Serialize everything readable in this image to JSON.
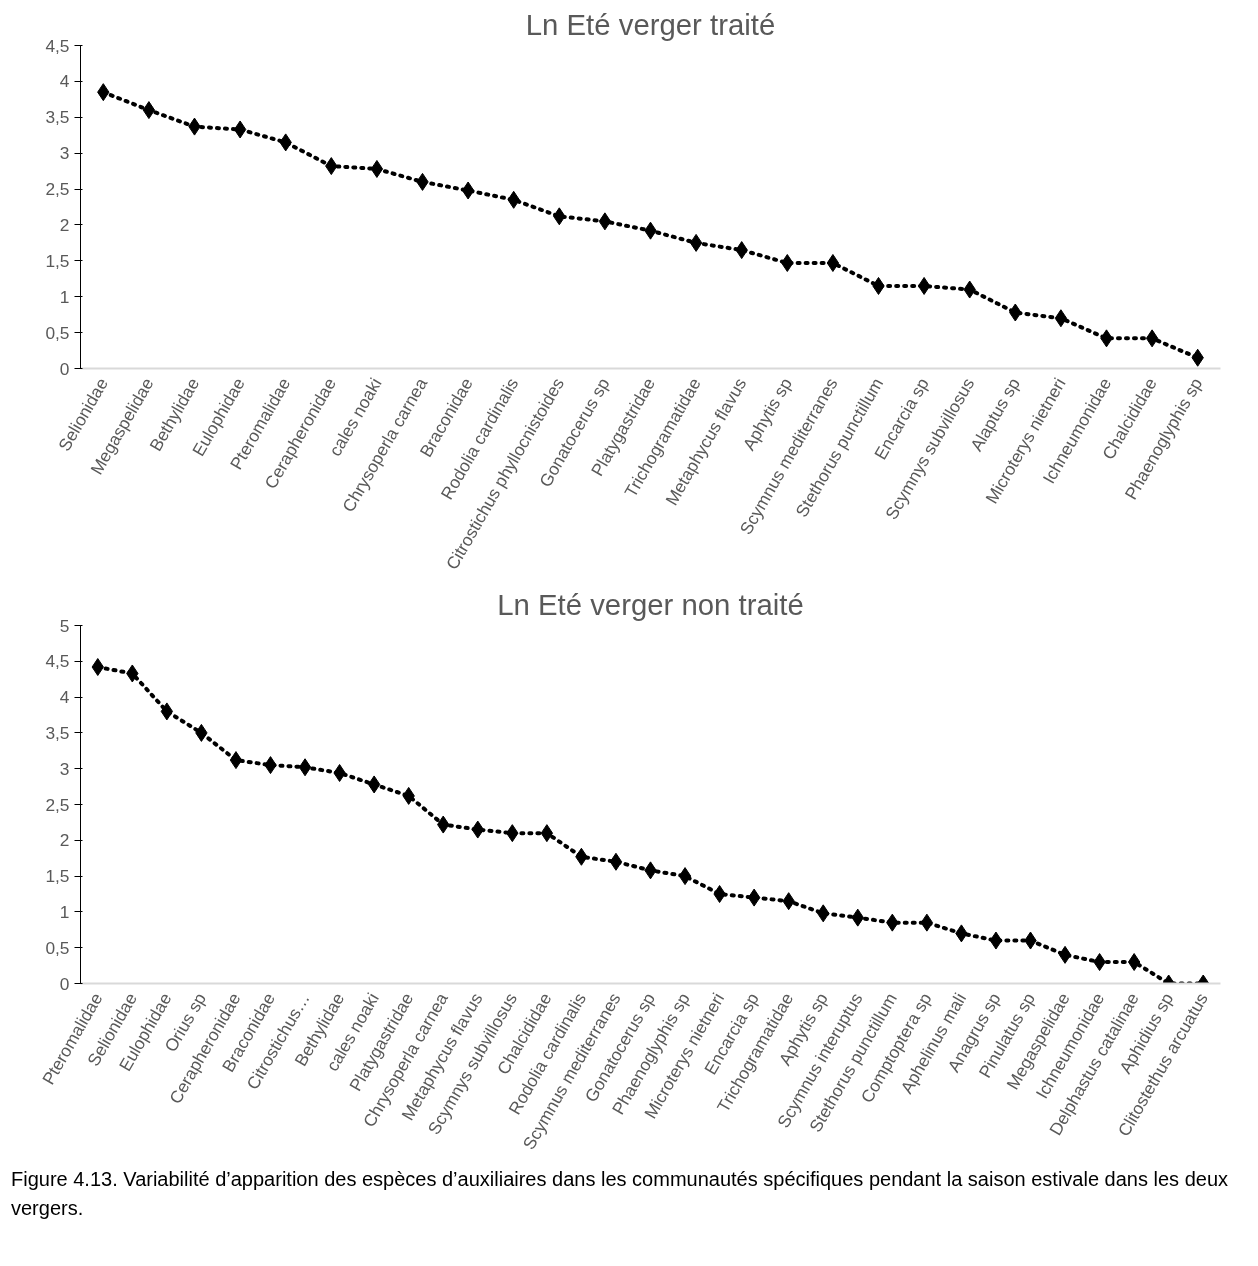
{
  "chart_data": [
    {
      "type": "line",
      "title": "Ln Eté verger traité",
      "categories": [
        "Selionidae",
        "Megaspelidae",
        "Bethylidae",
        "Eulophidae",
        "Pteromalidae",
        "Cerapheronidae",
        "cales noaki",
        "Chrysoperla carnea",
        "Braconidae",
        "Rodolia cardinalis",
        "Citrostichus phyllocnistoides",
        "Gonatocerus sp",
        "Platygastridae",
        "Trichogramatidae",
        "Metaphycus flavus",
        "Aphytis sp",
        "Scymnus mediterranes",
        "Stethorus punctillum",
        "Encarcia sp",
        "Scymnys subvillosus",
        "Alaptus sp",
        "Microterys nietneri",
        "Ichneumonidae",
        "Chalcididae",
        "Phaenoglyphis sp"
      ],
      "series": [
        {
          "color": "#000000",
          "values": [
            3.85,
            3.6,
            3.37,
            3.33,
            3.15,
            2.82,
            2.78,
            2.6,
            2.48,
            2.35,
            2.12,
            2.05,
            1.92,
            1.75,
            1.65,
            1.47,
            1.47,
            1.15,
            1.15,
            1.1,
            0.78,
            0.7,
            0.42,
            0.42,
            0.15
          ]
        }
      ],
      "ylim": [
        0,
        4.5
      ],
      "yticks": [
        0,
        {
          "value": 0.5,
          "label": "0,5"
        },
        1,
        {
          "value": 1.5,
          "label": "1,5"
        },
        2,
        {
          "value": 2.5,
          "label": "2,5"
        },
        3,
        {
          "value": 3.5,
          "label": "3,5"
        },
        4,
        {
          "value": 4.5,
          "label": "4,5"
        }
      ],
      "grid": false,
      "marker": "diamond",
      "line_style": "dotted"
    },
    {
      "type": "line",
      "title": "Ln Eté verger non traité",
      "categories": [
        "Pteromalidae",
        "Selionidae",
        "Eulophidae",
        "Orius sp",
        "Cerapheronidae",
        "Braconidae",
        "Citrostichus…",
        "Bethylidae",
        "cales noaki",
        "Platygastridae",
        "Chrysoperla carnea",
        "Metaphycus flavus",
        "Scymnys subvillosus",
        "Chalcididae",
        "Rodolia cardinalis",
        "Scymnus mediterranes",
        "Gonatocerus sp",
        "Phaenoglyphis sp",
        "Microterys nietneri",
        "Encarcia sp",
        "Trichogramatidae",
        "Aphytis sp",
        "Scymnus interuptus",
        "Stethorus punctillum",
        "Comptoptera sp",
        "Aphelinus mali",
        "Anagrus sp",
        "Pinulatus sp",
        "Megaspelidae",
        "Ichneumonidae",
        "Delphastus catalinae",
        "Aphidius sp",
        "Clitostethus arcuatus"
      ],
      "series": [
        {
          "color": "#000000",
          "values": [
            4.42,
            4.33,
            3.8,
            3.5,
            3.12,
            3.05,
            3.02,
            2.94,
            2.78,
            2.62,
            2.22,
            2.15,
            2.1,
            2.1,
            1.77,
            1.7,
            1.58,
            1.5,
            1.25,
            1.2,
            1.15,
            0.98,
            0.92,
            0.85,
            0.85,
            0.7,
            0.6,
            0.6,
            0.4,
            0.3,
            0.3,
            0,
            0
          ]
        }
      ],
      "ylim": [
        0,
        5
      ],
      "yticks": [
        0,
        {
          "value": 0.5,
          "label": "0,5"
        },
        1,
        {
          "value": 1.5,
          "label": "1,5"
        },
        2,
        {
          "value": 2.5,
          "label": "2,5"
        },
        3,
        {
          "value": 3.5,
          "label": "3,5"
        },
        4,
        {
          "value": 4.5,
          "label": "4,5"
        },
        5
      ],
      "grid": false,
      "marker": "diamond",
      "line_style": "dotted",
      "annotations": [
        "Figure 4.13. Variabilité d’apparition des espèces d’auxiliaires dans les communautés spécifiques pendant la saison estivale dans les deux vergers."
      ]
    }
  ]
}
